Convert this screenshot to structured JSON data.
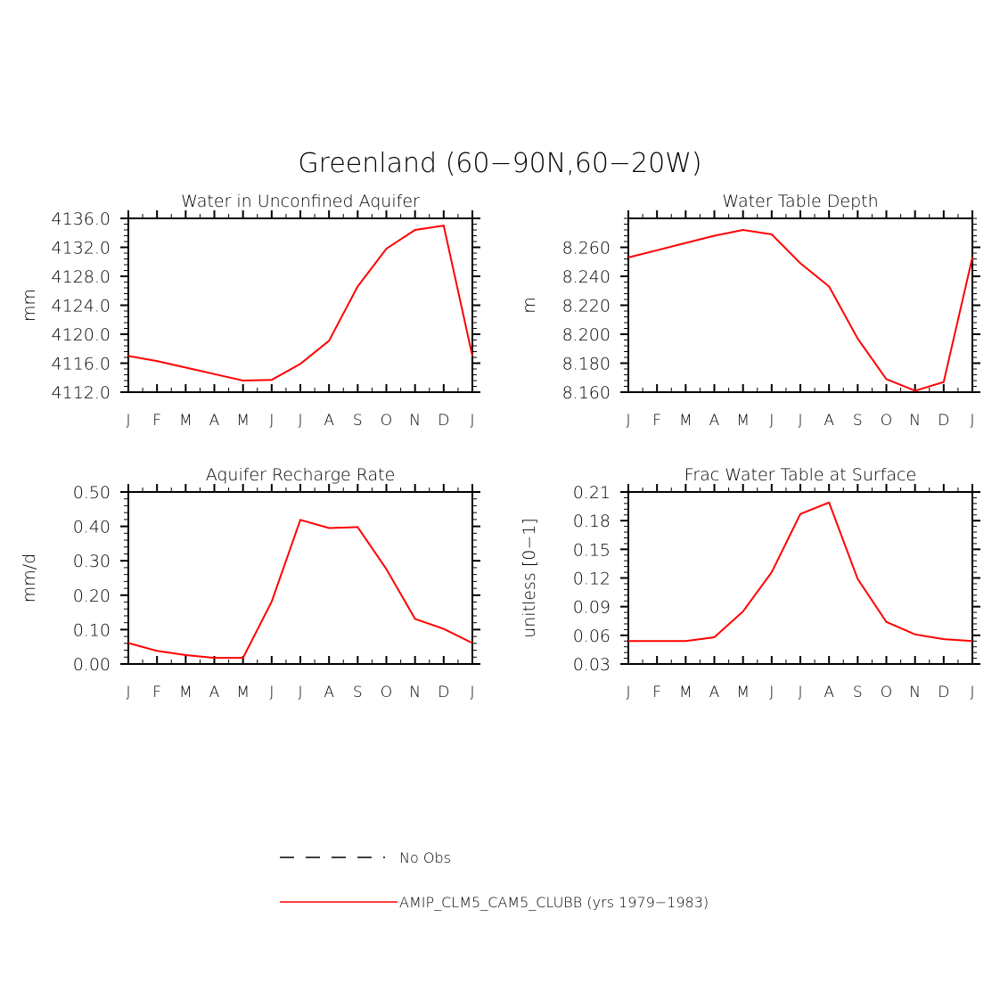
{
  "figure": {
    "title": "Greenland (60−90N,60−20W)",
    "legend": {
      "placement": "bottom-center",
      "items": [
        {
          "label": "No Obs",
          "color": "#000000",
          "style": "dashed"
        },
        {
          "label": "AMIP_CLM5_CAM5_CLUBB (yrs 1979−1983)",
          "color": "#ff0000",
          "style": "solid"
        }
      ]
    }
  },
  "chart_data": [
    {
      "type": "line",
      "title": "Water in Unconfined Aquifer",
      "ylabel": "mm",
      "x": [
        "J",
        "F",
        "M",
        "A",
        "M",
        "J",
        "J",
        "A",
        "S",
        "O",
        "N",
        "D",
        "J"
      ],
      "ylim": [
        4112,
        4136
      ],
      "yticks": [
        "4112.0",
        "4116.0",
        "4120.0",
        "4124.0",
        "4128.0",
        "4132.0",
        "4136.0"
      ],
      "series": [
        {
          "name": "AMIP_CLM5_CAM5_CLUBB (yrs 1979−1983)",
          "color": "#ff0000",
          "values": [
            4117.0,
            4116.3,
            4115.4,
            4114.5,
            4113.6,
            4113.7,
            4115.9,
            4119.1,
            4126.6,
            4131.8,
            4134.4,
            4135.0,
            4117.0
          ]
        }
      ]
    },
    {
      "type": "line",
      "title": "Water Table Depth",
      "ylabel": "m",
      "x": [
        "J",
        "F",
        "M",
        "A",
        "M",
        "J",
        "J",
        "A",
        "S",
        "O",
        "N",
        "D",
        "J"
      ],
      "ylim": [
        8.16,
        8.28
      ],
      "yticks": [
        "8.160",
        "8.180",
        "8.200",
        "8.220",
        "8.240",
        "8.260"
      ],
      "series": [
        {
          "name": "AMIP_CLM5_CAM5_CLUBB (yrs 1979−1983)",
          "color": "#ff0000",
          "values": [
            8.253,
            8.258,
            8.263,
            8.268,
            8.272,
            8.269,
            8.249,
            8.233,
            8.197,
            8.169,
            8.161,
            8.167,
            8.253
          ]
        }
      ]
    },
    {
      "type": "line",
      "title": "Aquifer Recharge Rate",
      "ylabel": "mm/d",
      "x": [
        "J",
        "F",
        "M",
        "A",
        "M",
        "J",
        "J",
        "A",
        "S",
        "O",
        "N",
        "D",
        "J"
      ],
      "ylim": [
        0.0,
        0.5
      ],
      "yticks": [
        "0.00",
        "0.10",
        "0.20",
        "0.30",
        "0.40",
        "0.50"
      ],
      "series": [
        {
          "name": "AMIP_CLM5_CAM5_CLUBB (yrs 1979−1983)",
          "color": "#ff0000",
          "values": [
            0.061,
            0.038,
            0.026,
            0.018,
            0.018,
            0.181,
            0.419,
            0.395,
            0.398,
            0.276,
            0.131,
            0.102,
            0.061
          ]
        }
      ]
    },
    {
      "type": "line",
      "title": "Frac Water Table at Surface",
      "ylabel": "unitless [0−1]",
      "x": [
        "J",
        "F",
        "M",
        "A",
        "M",
        "J",
        "J",
        "A",
        "S",
        "O",
        "N",
        "D",
        "J"
      ],
      "ylim": [
        0.03,
        0.21
      ],
      "yticks": [
        "0.03",
        "0.06",
        "0.09",
        "0.12",
        "0.15",
        "0.18",
        "0.21"
      ],
      "series": [
        {
          "name": "AMIP_CLM5_CAM5_CLUBB (yrs 1979−1983)",
          "color": "#ff0000",
          "values": [
            0.054,
            0.054,
            0.054,
            0.058,
            0.085,
            0.126,
            0.187,
            0.199,
            0.119,
            0.074,
            0.061,
            0.056,
            0.054
          ]
        }
      ]
    }
  ]
}
